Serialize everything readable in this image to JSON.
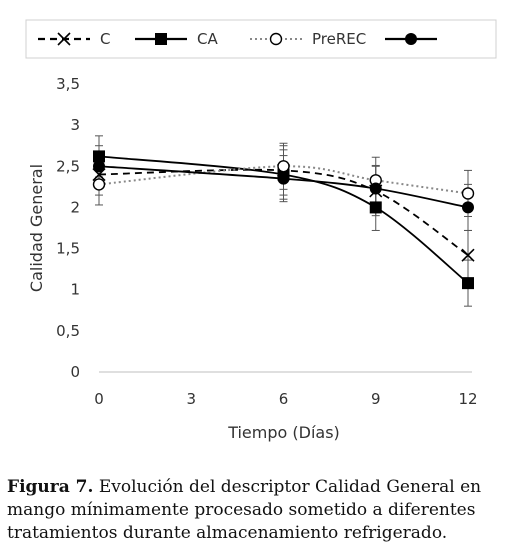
{
  "chart_data": {
    "type": "line",
    "xlabel": "Tiempo (Días)",
    "ylabel": "Calidad General",
    "x": [
      0,
      6,
      9,
      12
    ],
    "xticks": [
      "0",
      "3",
      "6",
      "9",
      "12"
    ],
    "xtick_values": [
      0,
      3,
      6,
      9,
      12
    ],
    "ylim": [
      0,
      3.5
    ],
    "yticks": [
      "0",
      "0,5",
      "1",
      "1,5",
      "2",
      "2,5",
      "3",
      "3,5"
    ],
    "ytick_values": [
      0,
      0.5,
      1,
      1.5,
      2,
      2.5,
      3,
      3.5
    ],
    "grid": false,
    "legend_position": "top",
    "series": [
      {
        "name": "C",
        "marker": "x",
        "line": "dashed",
        "color": "#000000",
        "values": [
          2.4,
          2.45,
          2.2,
          1.42
        ],
        "errors": [
          0.25,
          0.3,
          0.3,
          0.3
        ]
      },
      {
        "name": "CA",
        "marker": "square",
        "line": "solid",
        "color": "#000000",
        "values": [
          2.62,
          2.4,
          2.0,
          1.08
        ],
        "errors": [
          0.25,
          0.3,
          0.28,
          0.28
        ]
      },
      {
        "name": "PreREC",
        "marker": "circle-open",
        "line": "dotted",
        "color": "#888888",
        "values": [
          2.28,
          2.5,
          2.33,
          2.17
        ],
        "errors": [
          0.25,
          0.28,
          0.28,
          0.28
        ]
      },
      {
        "name": "",
        "marker": "circle-filled",
        "line": "solid",
        "color": "#000000",
        "values": [
          2.5,
          2.35,
          2.23,
          2.0
        ],
        "errors": [
          0.25,
          0.28,
          0.28,
          0.28
        ]
      }
    ]
  },
  "caption": {
    "label": "Figura 7.",
    "text": " Evolución del descriptor Calidad General en mango mínimamente procesado sometido a diferentes tratamientos durante almacenamiento refrigerado."
  }
}
